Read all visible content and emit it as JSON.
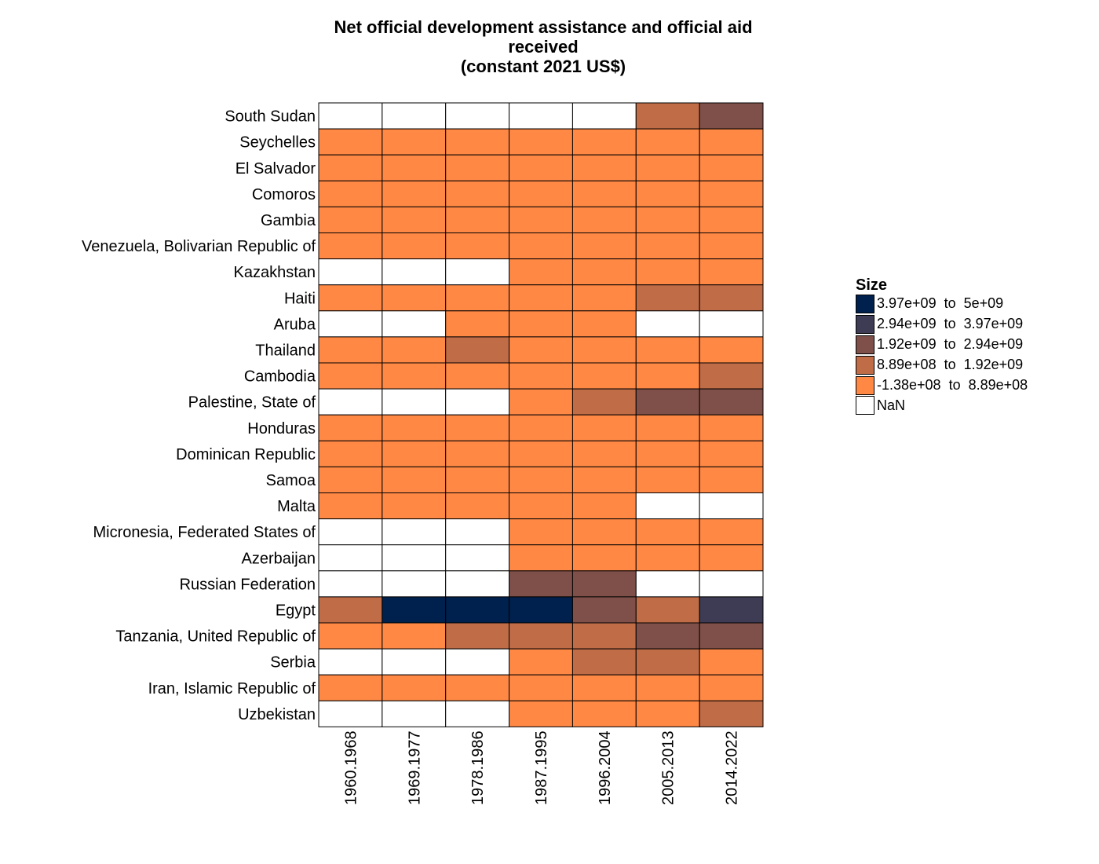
{
  "chart_data": {
    "type": "heatmap",
    "title": [
      "Net official development assistance and official aid",
      "received",
      "(constant 2021 US$)"
    ],
    "x_categories": [
      "1960.1968",
      "1969.1977",
      "1978.1986",
      "1987.1995",
      "1996.2004",
      "2005.2013",
      "2014.2022"
    ],
    "y_categories": [
      "South Sudan",
      "Seychelles",
      "El Salvador",
      "Comoros",
      "Gambia",
      "Venezuela, Bolivarian Republic of",
      "Kazakhstan",
      "Haiti",
      "Aruba",
      "Thailand",
      "Cambodia",
      "Palestine, State of",
      "Honduras",
      "Dominican Republic",
      "Samoa",
      "Malta",
      "Micronesia, Federated States of",
      "Azerbaijan",
      "Russian Federation",
      "Egypt",
      "Tanzania, United Republic of",
      "Serbia",
      "Iran, Islamic Republic of",
      "Uzbekistan"
    ],
    "legend": {
      "title": "Size",
      "bins": [
        {
          "label": "3.97e+09  to  5e+09",
          "color": "#00204d"
        },
        {
          "label": "2.94e+09  to  3.97e+09",
          "color": "#3d3c54"
        },
        {
          "label": "1.92e+09  to  2.94e+09",
          "color": "#7f5049"
        },
        {
          "label": "8.89e+08  to  1.92e+09",
          "color": "#c06c47"
        },
        {
          "label": "-1.38e+08  to  8.89e+08",
          "color": "#ff8845"
        },
        {
          "label": "NaN",
          "color": "#ffffff"
        }
      ]
    },
    "cell_bins": [
      [
        5,
        5,
        5,
        5,
        5,
        3,
        2
      ],
      [
        4,
        4,
        4,
        4,
        4,
        4,
        4
      ],
      [
        4,
        4,
        4,
        4,
        4,
        4,
        4
      ],
      [
        4,
        4,
        4,
        4,
        4,
        4,
        4
      ],
      [
        4,
        4,
        4,
        4,
        4,
        4,
        4
      ],
      [
        4,
        4,
        4,
        4,
        4,
        4,
        4
      ],
      [
        5,
        5,
        5,
        4,
        4,
        4,
        4
      ],
      [
        4,
        4,
        4,
        4,
        4,
        3,
        3
      ],
      [
        5,
        5,
        4,
        4,
        4,
        5,
        5
      ],
      [
        4,
        4,
        3,
        4,
        4,
        4,
        4
      ],
      [
        4,
        4,
        4,
        4,
        4,
        4,
        3
      ],
      [
        5,
        5,
        5,
        4,
        3,
        2,
        2
      ],
      [
        4,
        4,
        4,
        4,
        4,
        4,
        4
      ],
      [
        4,
        4,
        4,
        4,
        4,
        4,
        4
      ],
      [
        4,
        4,
        4,
        4,
        4,
        4,
        4
      ],
      [
        4,
        4,
        4,
        4,
        4,
        5,
        5
      ],
      [
        5,
        5,
        5,
        4,
        4,
        4,
        4
      ],
      [
        5,
        5,
        5,
        4,
        4,
        4,
        4
      ],
      [
        5,
        5,
        5,
        2,
        2,
        5,
        5
      ],
      [
        3,
        0,
        0,
        0,
        2,
        3,
        1
      ],
      [
        4,
        4,
        3,
        3,
        3,
        2,
        2
      ],
      [
        5,
        5,
        5,
        4,
        3,
        3,
        4
      ],
      [
        4,
        4,
        4,
        4,
        4,
        4,
        4
      ],
      [
        5,
        5,
        5,
        4,
        4,
        4,
        3
      ]
    ]
  }
}
